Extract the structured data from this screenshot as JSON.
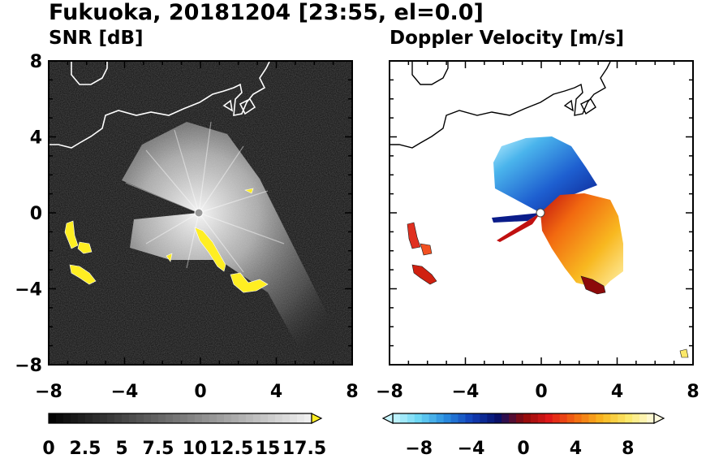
{
  "header": {
    "title": "Fukuoka, 20181204 [23:55, el=0.0]"
  },
  "chart_data": [
    {
      "type": "heatmap",
      "title": "SNR [dB]",
      "xlim": [
        -8,
        8
      ],
      "ylim": [
        -8,
        8
      ],
      "x_ticks": [
        -8,
        -4,
        0,
        4,
        8
      ],
      "y_ticks": [
        -8,
        -4,
        0,
        4,
        8
      ],
      "x_tick_labels": [
        "−8",
        "−4",
        "0",
        "4",
        "8"
      ],
      "y_tick_labels": [
        "−8",
        "−4",
        "0",
        "4",
        "8"
      ],
      "colorbar": {
        "range": [
          0,
          18
        ],
        "levels": 36,
        "extend": "max",
        "tick_values": [
          0,
          2.5,
          5,
          7.5,
          10,
          12.5,
          15,
          17.5
        ],
        "tick_labels": [
          "0",
          "2.5",
          "5",
          "7.5",
          "10",
          "12.5",
          "15",
          "17.5"
        ],
        "low_color": "#000000",
        "high_color": "#f2f2f2",
        "extend_color": "#ffee22"
      },
      "background_color": "#0c0c0c",
      "coastline_color": "#ffffff"
    },
    {
      "type": "heatmap",
      "title": "Doppler Velocity [m/s]",
      "xlim": [
        -8,
        8
      ],
      "ylim": [
        -8,
        8
      ],
      "x_ticks": [
        -8,
        -4,
        0,
        4,
        8
      ],
      "y_ticks": [
        -8,
        -4,
        0,
        4,
        8
      ],
      "x_tick_labels": [
        "−8",
        "−4",
        "0",
        "4",
        "8"
      ],
      "colorbar": {
        "range": [
          -10,
          10
        ],
        "levels": 36,
        "extend": "both",
        "tick_values": [
          -8,
          -4,
          0,
          4,
          8
        ],
        "tick_labels": [
          "−8",
          "−4",
          "0",
          "4",
          "8"
        ],
        "stops": [
          "#c8f6ff",
          "#6ad6f4",
          "#2a8ee0",
          "#123fb8",
          "#06106a",
          "#8c0a0a",
          "#e01818",
          "#f26a10",
          "#f8b820",
          "#fbe86a",
          "#fffbe0"
        ]
      },
      "background_color": "#ffffff",
      "coastline_color": "#000000"
    }
  ]
}
